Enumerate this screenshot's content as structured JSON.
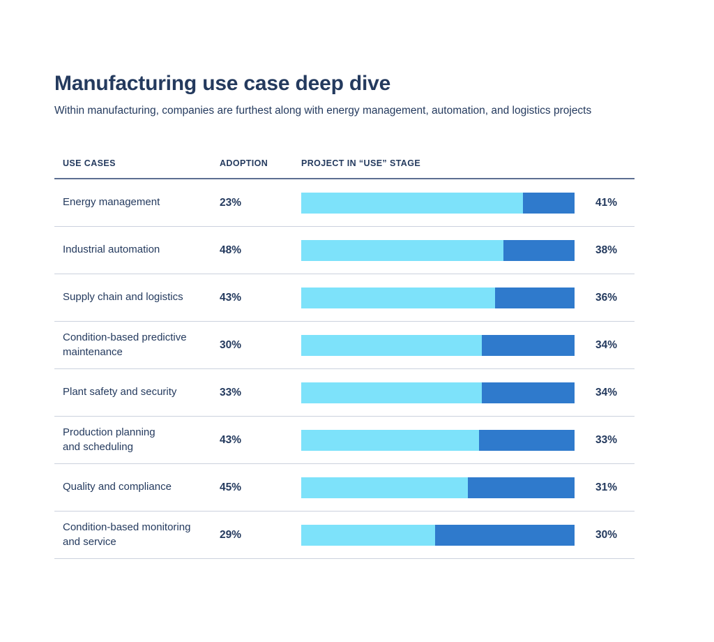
{
  "chart_data": {
    "type": "bar",
    "subtype": "horizontal-100pct-stacked",
    "title": "Manufacturing use case deep dive",
    "subtitle": "Within manufacturing, companies are furthest along with energy management, automation, and logistics projects",
    "columns": [
      "USE CASES",
      "ADOPTION",
      "PROJECT IN “USE” STAGE"
    ],
    "legend_position": "none",
    "grid": false,
    "colors": {
      "bar_light_blue": "#7DE2FA",
      "bar_dark_blue": "#2F7ACC",
      "text_navy": "#243A5E",
      "header_rule": "#5C6E91",
      "row_rule": "#CBD1DD"
    },
    "rows": [
      {
        "use_case": "Energy management",
        "label_lines": [
          "Energy management"
        ],
        "adoption": "23%",
        "use_stage": "41%",
        "bar_light_pct": 81,
        "bar_dark_pct": 19
      },
      {
        "use_case": "Industrial automation",
        "label_lines": [
          "Industrial automation"
        ],
        "adoption": "48%",
        "use_stage": "38%",
        "bar_light_pct": 74,
        "bar_dark_pct": 26
      },
      {
        "use_case": "Supply chain and logistics",
        "label_lines": [
          "Supply chain and logistics"
        ],
        "adoption": "43%",
        "use_stage": "36%",
        "bar_light_pct": 71,
        "bar_dark_pct": 29
      },
      {
        "use_case": "Condition-based predictive maintenance",
        "label_lines": [
          "Condition-based predictive",
          "maintenance"
        ],
        "adoption": "30%",
        "use_stage": "34%",
        "bar_light_pct": 66,
        "bar_dark_pct": 34
      },
      {
        "use_case": "Plant safety and security",
        "label_lines": [
          "Plant safety and security"
        ],
        "adoption": "33%",
        "use_stage": "34%",
        "bar_light_pct": 66,
        "bar_dark_pct": 34
      },
      {
        "use_case": "Production planning and scheduling",
        "label_lines": [
          "Production planning",
          "and scheduling"
        ],
        "adoption": "43%",
        "use_stage": "33%",
        "bar_light_pct": 65,
        "bar_dark_pct": 35
      },
      {
        "use_case": "Quality and compliance",
        "label_lines": [
          "Quality and compliance"
        ],
        "adoption": "45%",
        "use_stage": "31%",
        "bar_light_pct": 61,
        "bar_dark_pct": 39
      },
      {
        "use_case": "Condition-based monitoring and service",
        "label_lines": [
          "Condition-based monitoring",
          "and service"
        ],
        "adoption": "29%",
        "use_stage": "30%",
        "bar_light_pct": 49,
        "bar_dark_pct": 51
      }
    ]
  }
}
